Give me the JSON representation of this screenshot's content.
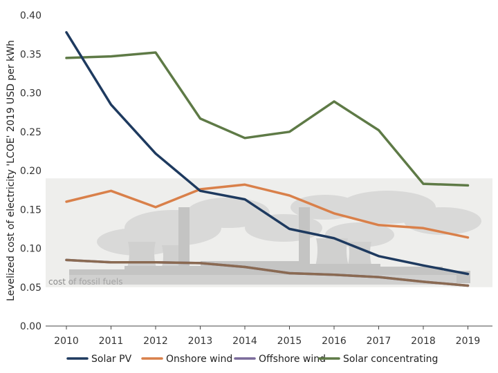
{
  "chart_data": {
    "type": "line",
    "title": "",
    "xlabel": "",
    "ylabel": "Levelized cost of electricity 'LCOE' 2019 USD per kWh",
    "x": [
      "2010",
      "2011",
      "2012",
      "2013",
      "2014",
      "2015",
      "2016",
      "2017",
      "2018",
      "2019"
    ],
    "y_ticks": [
      "0.00",
      "0.05",
      "0.10",
      "0.15",
      "0.20",
      "0.25",
      "0.30",
      "0.35",
      "0.40"
    ],
    "ylim": [
      0,
      0.4
    ],
    "grid": false,
    "legend_position": "bottom",
    "fossil_band": {
      "label": "cost of fossil fuels",
      "range": [
        0.05,
        0.19
      ],
      "color": "#eeeeec"
    },
    "series": [
      {
        "name": "Solar PV",
        "color": "#1e3a5f",
        "values": [
          0.378,
          0.285,
          0.222,
          0.174,
          0.163,
          0.125,
          0.113,
          0.09,
          0.078,
          0.067
        ]
      },
      {
        "name": "Onshore wind",
        "color": "#d9804a",
        "values": [
          0.16,
          0.174,
          0.153,
          0.176,
          0.182,
          0.168,
          0.145,
          0.13,
          0.126,
          0.114
        ]
      },
      {
        "name": "Offshore wind",
        "color": "#7a6a9a",
        "values": [
          0.085,
          0.082,
          0.082,
          0.081,
          0.076,
          0.068,
          0.066,
          0.063,
          0.057,
          0.052
        ]
      },
      {
        "name": "Solar concentrating",
        "color": "#5e7a46",
        "values": [
          0.345,
          0.347,
          0.352,
          0.267,
          0.242,
          0.25,
          0.289,
          0.252,
          0.183,
          0.181
        ]
      }
    ],
    "overlay_line": {
      "color": "#8a6a52",
      "values": [
        0.085,
        0.082,
        0.082,
        0.081,
        0.076,
        0.068,
        0.066,
        0.063,
        0.057,
        0.052
      ]
    }
  }
}
